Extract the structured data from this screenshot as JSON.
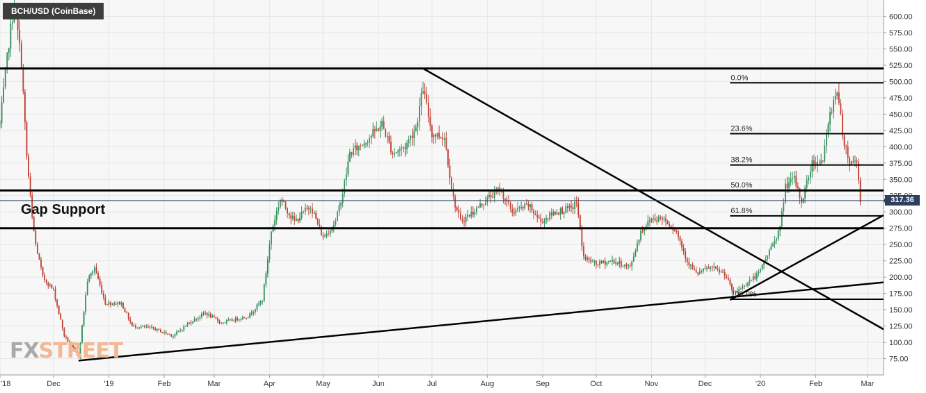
{
  "symbol": "BCH/USD (CoinBase)",
  "last_price": "317.36",
  "annotation_gap_support": "Gap Support",
  "watermark": {
    "part1": "FX",
    "part2": "STREET"
  },
  "colors": {
    "background": "#ffffff",
    "plot_background": "#f7f7f7",
    "grid": "#e6e6e6",
    "up_candle": "#2e8b57",
    "down_candle": "#c0392b",
    "trend_lines": "#000000",
    "last_price_line": "#2c3f5e",
    "axis_text": "#333333"
  },
  "chart_data": {
    "type": "candlestick",
    "title": "BCH/USD (CoinBase)",
    "ylim": [
      50,
      625
    ],
    "xlim": [
      "2018-11-01",
      "2020-03-10"
    ],
    "grid": true,
    "y_ticks": [
      "75.00",
      "100.00",
      "125.00",
      "150.00",
      "175.00",
      "200.00",
      "225.00",
      "250.00",
      "275.00",
      "300.00",
      "325.00",
      "350.00",
      "375.00",
      "400.00",
      "425.00",
      "450.00",
      "475.00",
      "500.00",
      "525.00",
      "550.00",
      "575.00",
      "600.00"
    ],
    "x_ticks": [
      {
        "label": "'18",
        "date": "2018-11-01"
      },
      {
        "label": "Dec",
        "date": "2018-12-01"
      },
      {
        "label": "'19",
        "date": "2019-01-01"
      },
      {
        "label": "Feb",
        "date": "2019-02-01"
      },
      {
        "label": "Mar",
        "date": "2019-03-01"
      },
      {
        "label": "Apr",
        "date": "2019-04-01"
      },
      {
        "label": "May",
        "date": "2019-05-01"
      },
      {
        "label": "Jun",
        "date": "2019-06-01"
      },
      {
        "label": "Jul",
        "date": "2019-07-01"
      },
      {
        "label": "Aug",
        "date": "2019-08-01"
      },
      {
        "label": "Sep",
        "date": "2019-09-01"
      },
      {
        "label": "Oct",
        "date": "2019-10-01"
      },
      {
        "label": "Nov",
        "date": "2019-11-01"
      },
      {
        "label": "Dec",
        "date": "2019-12-01"
      },
      {
        "label": "'20",
        "date": "2020-01-01"
      },
      {
        "label": "Feb",
        "date": "2020-02-01"
      },
      {
        "label": "Mar",
        "date": "2020-03-01"
      }
    ],
    "last_price": 317.36,
    "series": [
      {
        "date": "2018-11-01",
        "close": 435
      },
      {
        "date": "2018-11-06",
        "close": 560
      },
      {
        "date": "2018-11-09",
        "close": 620
      },
      {
        "date": "2018-11-13",
        "close": 530
      },
      {
        "date": "2018-11-16",
        "close": 385
      },
      {
        "date": "2018-11-19",
        "close": 290
      },
      {
        "date": "2018-11-21",
        "close": 250
      },
      {
        "date": "2018-11-25",
        "close": 200
      },
      {
        "date": "2018-12-01",
        "close": 180
      },
      {
        "date": "2018-12-07",
        "close": 110
      },
      {
        "date": "2018-12-11",
        "close": 95
      },
      {
        "date": "2018-12-15",
        "close": 78
      },
      {
        "date": "2018-12-20",
        "close": 195
      },
      {
        "date": "2018-12-24",
        "close": 215
      },
      {
        "date": "2018-12-30",
        "close": 160
      },
      {
        "date": "2019-01-08",
        "close": 160
      },
      {
        "date": "2019-01-14",
        "close": 125
      },
      {
        "date": "2019-01-25",
        "close": 122
      },
      {
        "date": "2019-02-06",
        "close": 110
      },
      {
        "date": "2019-02-15",
        "close": 130
      },
      {
        "date": "2019-02-24",
        "close": 145
      },
      {
        "date": "2019-03-05",
        "close": 130
      },
      {
        "date": "2019-03-20",
        "close": 140
      },
      {
        "date": "2019-03-28",
        "close": 165
      },
      {
        "date": "2019-04-02",
        "close": 270
      },
      {
        "date": "2019-04-07",
        "close": 320
      },
      {
        "date": "2019-04-15",
        "close": 285
      },
      {
        "date": "2019-04-24",
        "close": 310
      },
      {
        "date": "2019-05-01",
        "close": 260
      },
      {
        "date": "2019-05-08",
        "close": 285
      },
      {
        "date": "2019-05-12",
        "close": 330
      },
      {
        "date": "2019-05-16",
        "close": 390
      },
      {
        "date": "2019-05-21",
        "close": 400
      },
      {
        "date": "2019-05-29",
        "close": 420
      },
      {
        "date": "2019-06-03",
        "close": 435
      },
      {
        "date": "2019-06-09",
        "close": 390
      },
      {
        "date": "2019-06-16",
        "close": 400
      },
      {
        "date": "2019-06-22",
        "close": 430
      },
      {
        "date": "2019-06-26",
        "close": 490
      },
      {
        "date": "2019-07-01",
        "close": 420
      },
      {
        "date": "2019-07-08",
        "close": 415
      },
      {
        "date": "2019-07-13",
        "close": 320
      },
      {
        "date": "2019-07-17",
        "close": 285
      },
      {
        "date": "2019-07-24",
        "close": 300
      },
      {
        "date": "2019-08-01",
        "close": 320
      },
      {
        "date": "2019-08-08",
        "close": 335
      },
      {
        "date": "2019-08-15",
        "close": 300
      },
      {
        "date": "2019-08-24",
        "close": 310
      },
      {
        "date": "2019-08-31",
        "close": 285
      },
      {
        "date": "2019-09-08",
        "close": 300
      },
      {
        "date": "2019-09-17",
        "close": 305
      },
      {
        "date": "2019-09-20",
        "close": 315
      },
      {
        "date": "2019-09-24",
        "close": 230
      },
      {
        "date": "2019-10-01",
        "close": 220
      },
      {
        "date": "2019-10-10",
        "close": 225
      },
      {
        "date": "2019-10-20",
        "close": 215
      },
      {
        "date": "2019-10-26",
        "close": 270
      },
      {
        "date": "2019-11-01",
        "close": 290
      },
      {
        "date": "2019-11-08",
        "close": 290
      },
      {
        "date": "2019-11-15",
        "close": 270
      },
      {
        "date": "2019-11-21",
        "close": 225
      },
      {
        "date": "2019-11-26",
        "close": 205
      },
      {
        "date": "2019-12-04",
        "close": 215
      },
      {
        "date": "2019-12-12",
        "close": 205
      },
      {
        "date": "2019-12-17",
        "close": 175
      },
      {
        "date": "2019-12-24",
        "close": 190
      },
      {
        "date": "2019-12-31",
        "close": 205
      },
      {
        "date": "2020-01-06",
        "close": 240
      },
      {
        "date": "2020-01-12",
        "close": 275
      },
      {
        "date": "2020-01-15",
        "close": 340
      },
      {
        "date": "2020-01-20",
        "close": 350
      },
      {
        "date": "2020-01-24",
        "close": 315
      },
      {
        "date": "2020-01-30",
        "close": 375
      },
      {
        "date": "2020-02-05",
        "close": 380
      },
      {
        "date": "2020-02-09",
        "close": 450
      },
      {
        "date": "2020-02-13",
        "close": 490
      },
      {
        "date": "2020-02-16",
        "close": 420
      },
      {
        "date": "2020-02-20",
        "close": 375
      },
      {
        "date": "2020-02-24",
        "close": 380
      },
      {
        "date": "2020-02-26",
        "close": 317.36
      }
    ],
    "horizontal_lines": [
      {
        "price": 520,
        "from": "2018-11-01",
        "to": "2020-03-10"
      },
      {
        "price": 333,
        "from": "2018-11-01",
        "to": "2020-03-10"
      },
      {
        "price": 275,
        "from": "2018-11-01",
        "to": "2020-03-10"
      }
    ],
    "trend_lines": [
      {
        "from_date": "2019-06-26",
        "from_price": 520,
        "to_date": "2020-03-10",
        "to_price": 120
      },
      {
        "from_date": "2018-12-15",
        "from_price": 72,
        "to_date": "2020-03-10",
        "to_price": 192
      },
      {
        "from_date": "2019-12-15",
        "from_price": 165,
        "to_date": "2020-03-10",
        "to_price": 295
      }
    ],
    "fibonacci": {
      "from_date": "2019-12-15",
      "to_date": "2020-03-10",
      "levels": [
        {
          "label": "0.0%",
          "price": 498
        },
        {
          "label": "23.6%",
          "price": 420
        },
        {
          "label": "38.2%",
          "price": 372
        },
        {
          "label": "50.0%",
          "price": 333
        },
        {
          "label": "61.8%",
          "price": 294
        },
        {
          "label": "100.0%",
          "price": 166
        }
      ]
    }
  }
}
